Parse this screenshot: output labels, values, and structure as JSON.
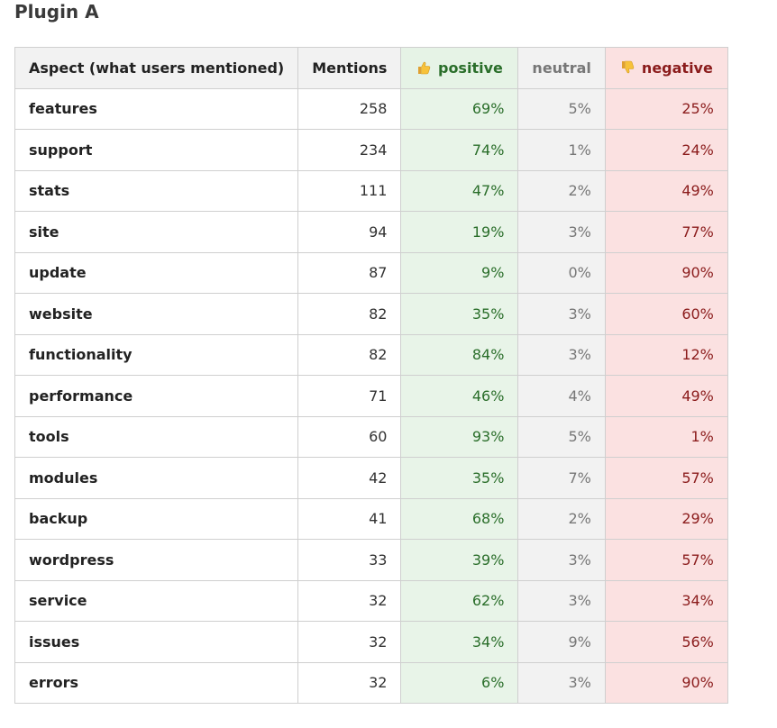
{
  "title": "Plugin A",
  "table": {
    "headers": {
      "aspect": "Aspect (what users mentioned)",
      "mentions": "Mentions",
      "positive": "positive",
      "neutral": "neutral",
      "negative": "negative"
    },
    "header_icons": {
      "positive": "thumbs-up-icon",
      "negative": "thumbs-down-icon"
    },
    "rows": [
      {
        "aspect": "features",
        "mentions": "258",
        "positive": "69%",
        "neutral": "5%",
        "negative": "25%"
      },
      {
        "aspect": "support",
        "mentions": "234",
        "positive": "74%",
        "neutral": "1%",
        "negative": "24%"
      },
      {
        "aspect": "stats",
        "mentions": "111",
        "positive": "47%",
        "neutral": "2%",
        "negative": "49%"
      },
      {
        "aspect": "site",
        "mentions": "94",
        "positive": "19%",
        "neutral": "3%",
        "negative": "77%"
      },
      {
        "aspect": "update",
        "mentions": "87",
        "positive": "9%",
        "neutral": "0%",
        "negative": "90%"
      },
      {
        "aspect": "website",
        "mentions": "82",
        "positive": "35%",
        "neutral": "3%",
        "negative": "60%"
      },
      {
        "aspect": "functionality",
        "mentions": "82",
        "positive": "84%",
        "neutral": "3%",
        "negative": "12%"
      },
      {
        "aspect": "performance",
        "mentions": "71",
        "positive": "46%",
        "neutral": "4%",
        "negative": "49%"
      },
      {
        "aspect": "tools",
        "mentions": "60",
        "positive": "93%",
        "neutral": "5%",
        "negative": "1%"
      },
      {
        "aspect": "modules",
        "mentions": "42",
        "positive": "35%",
        "neutral": "7%",
        "negative": "57%"
      },
      {
        "aspect": "backup",
        "mentions": "41",
        "positive": "68%",
        "neutral": "2%",
        "negative": "29%"
      },
      {
        "aspect": "wordpress",
        "mentions": "33",
        "positive": "39%",
        "neutral": "3%",
        "negative": "57%"
      },
      {
        "aspect": "service",
        "mentions": "32",
        "positive": "62%",
        "neutral": "3%",
        "negative": "34%"
      },
      {
        "aspect": "issues",
        "mentions": "32",
        "positive": "34%",
        "neutral": "9%",
        "negative": "56%"
      },
      {
        "aspect": "errors",
        "mentions": "32",
        "positive": "6%",
        "neutral": "3%",
        "negative": "90%"
      }
    ]
  },
  "colors": {
    "positive_text": "#2a6e2a",
    "positive_bg": "#e8f4e8",
    "neutral_text": "#777777",
    "neutral_bg": "#f2f2f2",
    "negative_text": "#8b1c1c",
    "negative_bg": "#fbe1e1"
  }
}
